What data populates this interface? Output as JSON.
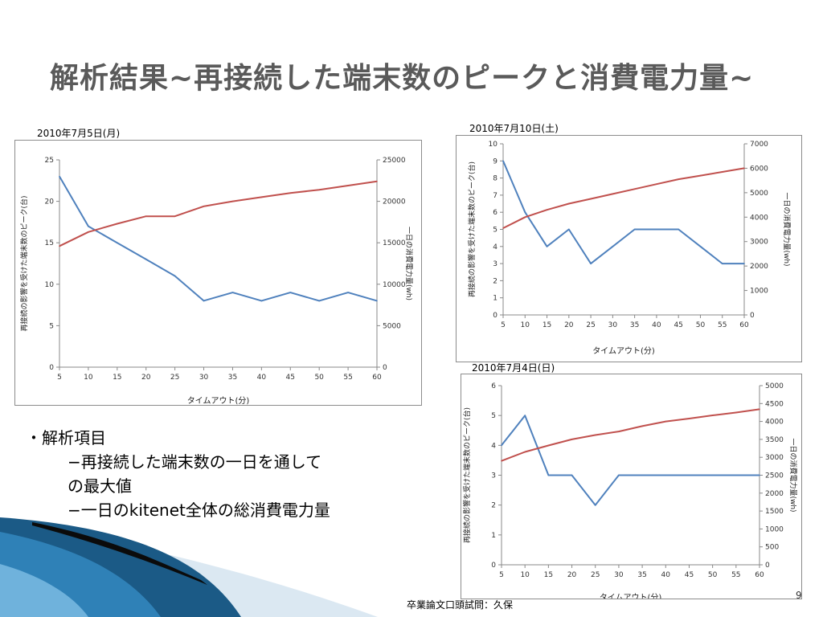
{
  "slide": {
    "title": "解析結果~再接続した端末数のピークと消費電力量~",
    "bullets": {
      "heading": "・解析項目",
      "item1_line1": "−再接続した端末数の一日を通して",
      "item1_line2": "の最大値",
      "item2": "−一日のkitenet全体の総消費電力量"
    },
    "footer": "卒業論文口頭試問：久保",
    "page_number": "9"
  },
  "colors": {
    "peak_series": "#4f81bd",
    "power_series": "#c0504d",
    "title_text": "#5a5a5a"
  },
  "chart_data": [
    {
      "type": "line",
      "caption": "2010年7月5日(月)",
      "x": [
        5,
        10,
        15,
        20,
        25,
        30,
        35,
        40,
        45,
        50,
        55,
        60
      ],
      "xlabel": "タイムアウト(分)",
      "ylabel": "再接続の影響を受けた端末数のピーク(台)",
      "y2label": "一日の消費電力量(wh)",
      "ylim": [
        0,
        25
      ],
      "y2lim": [
        0,
        25000
      ],
      "yticks": [
        0,
        5,
        10,
        15,
        20,
        25
      ],
      "y2ticks": [
        0,
        5000,
        10000,
        15000,
        20000,
        25000
      ],
      "grid": false,
      "series": [
        {
          "axis": "left",
          "values": [
            23,
            17,
            15,
            13,
            11,
            8,
            9,
            8,
            9,
            8,
            9,
            8
          ]
        },
        {
          "axis": "right",
          "values": [
            14600,
            16300,
            17300,
            18200,
            18200,
            19400,
            20000,
            20500,
            21000,
            21400,
            21900,
            22400
          ]
        }
      ]
    },
    {
      "type": "line",
      "caption": "2010年7月10日(土)",
      "x": [
        5,
        10,
        15,
        20,
        25,
        30,
        35,
        40,
        45,
        50,
        55,
        60
      ],
      "xlabel": "タイムアウト(分)",
      "ylabel": "再接続の影響を受けた端末数のピーク(台)",
      "y2label": "一日の消費電力量(wh)",
      "ylim": [
        0,
        10
      ],
      "y2lim": [
        0,
        7000
      ],
      "yticks": [
        0,
        1,
        2,
        3,
        4,
        5,
        6,
        7,
        8,
        9,
        10
      ],
      "y2ticks": [
        0,
        1000,
        2000,
        3000,
        4000,
        5000,
        6000,
        7000
      ],
      "grid": false,
      "series": [
        {
          "axis": "left",
          "values": [
            9,
            6,
            4,
            5,
            3,
            4,
            5,
            5,
            5,
            4,
            3,
            3
          ]
        },
        {
          "axis": "right",
          "values": [
            3550,
            4000,
            4300,
            4550,
            4750,
            4950,
            5150,
            5350,
            5550,
            5700,
            5850,
            6000
          ]
        }
      ]
    },
    {
      "type": "line",
      "caption": "2010年7月4日(日)",
      "x": [
        5,
        10,
        15,
        20,
        25,
        30,
        35,
        40,
        45,
        50,
        55,
        60
      ],
      "xlabel": "タイムアウト(分)",
      "ylabel": "再接続の影響を受けた端末数のピーク(台)",
      "y2label": "一日の消費電力量(wh)",
      "ylim": [
        0,
        6
      ],
      "y2lim": [
        0,
        5000
      ],
      "yticks": [
        0,
        1,
        2,
        3,
        4,
        5,
        6
      ],
      "y2ticks": [
        0,
        500,
        1000,
        1500,
        2000,
        2500,
        3000,
        3500,
        4000,
        4500,
        5000
      ],
      "grid": false,
      "series": [
        {
          "axis": "left",
          "values": [
            4,
            5,
            3,
            3,
            2,
            3,
            3,
            3,
            3,
            3,
            3,
            3
          ]
        },
        {
          "axis": "right",
          "values": [
            2900,
            3150,
            3330,
            3500,
            3620,
            3720,
            3870,
            4000,
            4080,
            4170,
            4250,
            4340
          ]
        }
      ]
    }
  ]
}
